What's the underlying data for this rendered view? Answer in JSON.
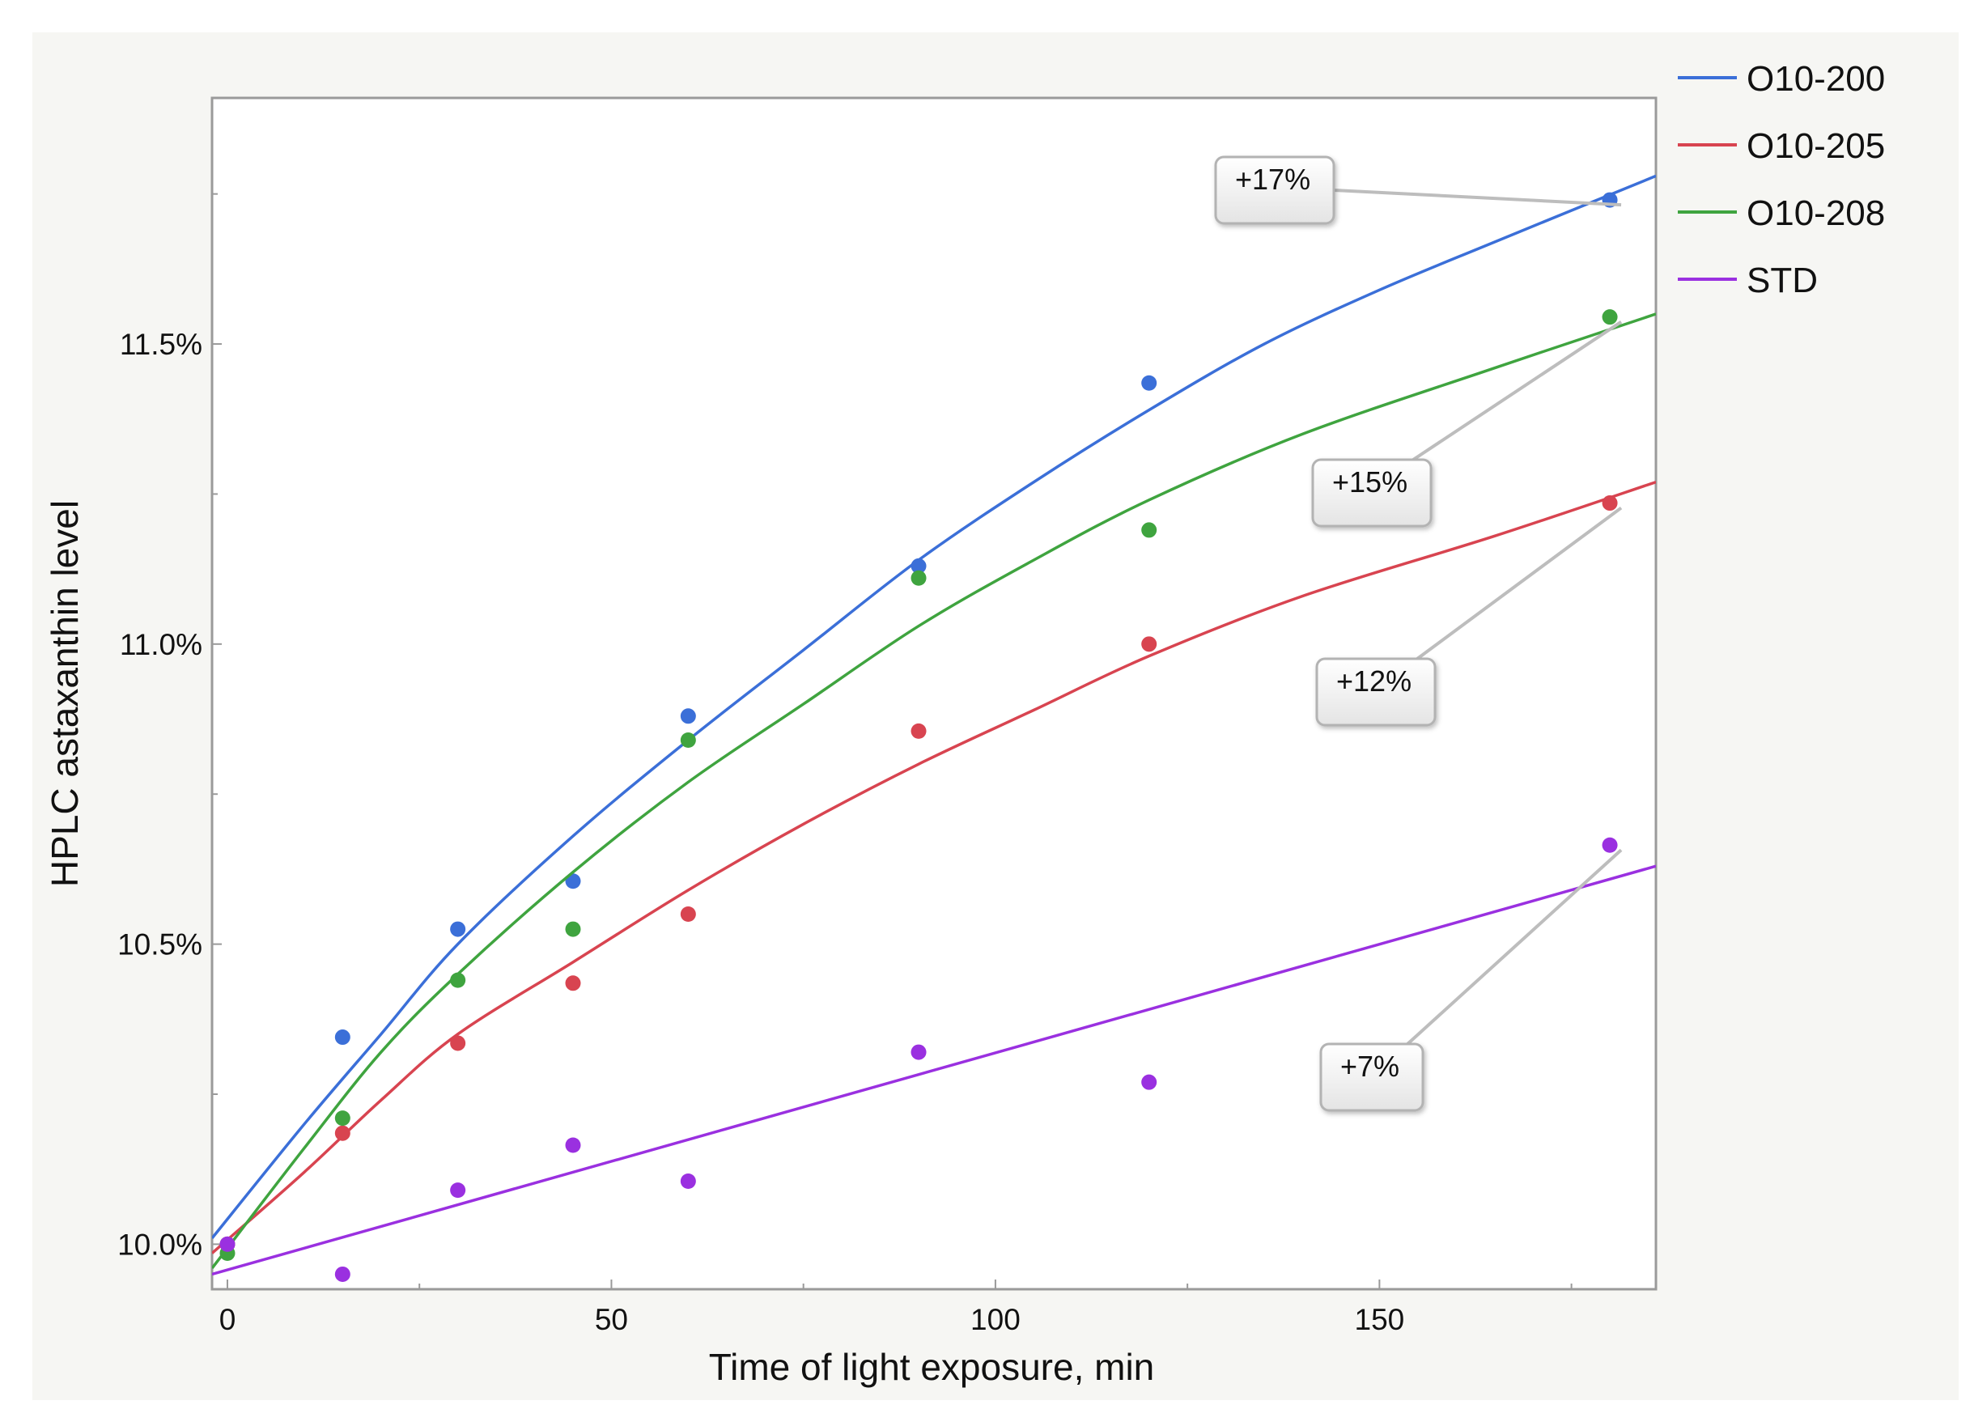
{
  "chart_data": {
    "type": "scatter",
    "title": "",
    "xlabel": "Time of light exposure, min",
    "ylabel": "HPLC astaxanthin level",
    "xlim": [
      -2,
      186
    ],
    "ylim": [
      9.925,
      11.91
    ],
    "xticks": [
      0,
      50,
      100,
      150
    ],
    "xtick_labels": [
      "0",
      "50",
      "100",
      "150"
    ],
    "yticks": [
      10.0,
      10.5,
      11.0,
      11.5
    ],
    "ytick_labels": [
      "10.0%",
      "10.5%",
      "11.0%",
      "11.5%"
    ],
    "grid": false,
    "legend_position": "top-right, outside plot",
    "fit": "curve per series",
    "series": [
      {
        "name": "O10-200",
        "color": "#3b6fd8",
        "points": [
          [
            0,
            10.0
          ],
          [
            15,
            10.345
          ],
          [
            30,
            10.525
          ],
          [
            45,
            10.605
          ],
          [
            60,
            10.88
          ],
          [
            90,
            11.13
          ],
          [
            120,
            11.435
          ],
          [
            180,
            11.74
          ]
        ],
        "fit": [
          [
            -2,
            10.01
          ],
          [
            10,
            10.2
          ],
          [
            20,
            10.35
          ],
          [
            30,
            10.5
          ],
          [
            45,
            10.68
          ],
          [
            60,
            10.84
          ],
          [
            75,
            10.99
          ],
          [
            90,
            11.14
          ],
          [
            105,
            11.27
          ],
          [
            120,
            11.39
          ],
          [
            135,
            11.5
          ],
          [
            150,
            11.59
          ],
          [
            165,
            11.67
          ],
          [
            186,
            11.78
          ]
        ]
      },
      {
        "name": "O10-205",
        "color": "#d84450",
        "points": [
          [
            0,
            10.0
          ],
          [
            15,
            10.185
          ],
          [
            30,
            10.335
          ],
          [
            45,
            10.435
          ],
          [
            60,
            10.55
          ],
          [
            90,
            10.855
          ],
          [
            120,
            11.0
          ],
          [
            180,
            11.235
          ]
        ],
        "fit": [
          [
            -2,
            9.985
          ],
          [
            10,
            10.12
          ],
          [
            20,
            10.24
          ],
          [
            30,
            10.35
          ],
          [
            45,
            10.47
          ],
          [
            60,
            10.59
          ],
          [
            75,
            10.7
          ],
          [
            90,
            10.8
          ],
          [
            105,
            10.89
          ],
          [
            120,
            10.98
          ],
          [
            140,
            11.08
          ],
          [
            165,
            11.18
          ],
          [
            186,
            11.27
          ]
        ]
      },
      {
        "name": "O10-208",
        "color": "#3fa43f",
        "points": [
          [
            0,
            9.985
          ],
          [
            15,
            10.21
          ],
          [
            30,
            10.44
          ],
          [
            45,
            10.525
          ],
          [
            60,
            10.84
          ],
          [
            90,
            11.11
          ],
          [
            120,
            11.19
          ],
          [
            180,
            11.545
          ]
        ],
        "fit": [
          [
            -2,
            9.96
          ],
          [
            10,
            10.16
          ],
          [
            20,
            10.32
          ],
          [
            30,
            10.45
          ],
          [
            45,
            10.62
          ],
          [
            60,
            10.77
          ],
          [
            75,
            10.9
          ],
          [
            90,
            11.03
          ],
          [
            105,
            11.14
          ],
          [
            120,
            11.24
          ],
          [
            140,
            11.35
          ],
          [
            165,
            11.46
          ],
          [
            186,
            11.55
          ]
        ]
      },
      {
        "name": "STD",
        "color": "#9a30e0",
        "points": [
          [
            0,
            10.0
          ],
          [
            15,
            9.95
          ],
          [
            30,
            10.09
          ],
          [
            45,
            10.165
          ],
          [
            60,
            10.105
          ],
          [
            90,
            10.32
          ],
          [
            120,
            10.27
          ],
          [
            180,
            10.665
          ]
        ],
        "fit": [
          [
            -2,
            9.95
          ],
          [
            186,
            10.63
          ]
        ]
      }
    ],
    "annotations": [
      {
        "label": "+17%",
        "series": "O10-200",
        "x": 180
      },
      {
        "label": "+15%",
        "series": "O10-208",
        "x": 180
      },
      {
        "label": "+12%",
        "series": "O10-205",
        "x": 180
      },
      {
        "label": "+7%",
        "series": "STD",
        "x": 180
      }
    ]
  }
}
